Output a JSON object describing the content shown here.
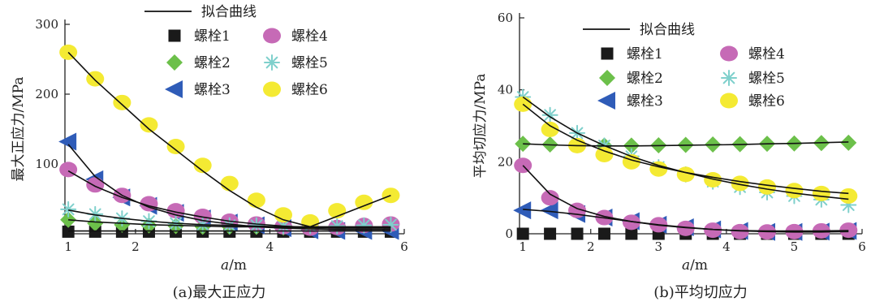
{
  "chart_data": [
    {
      "type": "scatter",
      "caption": "(a)最大正应力",
      "xlabel_var": "a",
      "xlabel_unit": "/m",
      "ylabel": "最大正应力/MPa",
      "xlim": [
        0.95,
        6.0
      ],
      "ylim": [
        0,
        300
      ],
      "xticks": [
        1,
        2,
        3,
        4,
        5,
        6
      ],
      "xtick_labels": [
        "1",
        "2",
        "",
        "4",
        "",
        "6"
      ],
      "yticks": [
        100,
        200,
        300
      ],
      "x": [
        1.0,
        1.4,
        1.8,
        2.2,
        2.6,
        3.0,
        3.4,
        3.8,
        4.2,
        4.6,
        5.0,
        5.4,
        5.8
      ],
      "fit_label": "拟合曲线",
      "series": [
        {
          "name": "螺栓1",
          "marker": "square",
          "color": "#1a1a1a",
          "values": [
            3,
            3,
            3,
            3,
            3,
            3,
            3,
            3,
            3,
            3,
            3,
            3,
            3
          ],
          "fit": [
            4,
            4,
            4,
            4,
            4,
            4,
            4,
            4,
            4,
            4,
            4,
            4,
            4
          ]
        },
        {
          "name": "螺栓2",
          "marker": "diamond",
          "color": "#6cc04a",
          "values": [
            20,
            15,
            13,
            12,
            11,
            10,
            10,
            10,
            9,
            9,
            9,
            10,
            11
          ],
          "fit": [
            20,
            17,
            15,
            13,
            12,
            11,
            10,
            10,
            9,
            9,
            9,
            9,
            9
          ]
        },
        {
          "name": "螺栓3",
          "marker": "triangle-left",
          "color": "#2f5cb8",
          "values": [
            132,
            78,
            52,
            40,
            30,
            22,
            16,
            12,
            8,
            5,
            4,
            4,
            4
          ],
          "fit": [
            128,
            82,
            55,
            38,
            27,
            19,
            14,
            10,
            8,
            7,
            6,
            6,
            6
          ]
        },
        {
          "name": "螺栓4",
          "marker": "circle",
          "color": "#c66ab6",
          "values": [
            92,
            70,
            55,
            43,
            33,
            25,
            18,
            14,
            10,
            8,
            9,
            12,
            14
          ],
          "fit": [
            90,
            68,
            52,
            40,
            31,
            24,
            18,
            14,
            11,
            9,
            8,
            8,
            8
          ]
        },
        {
          "name": "螺栓5",
          "marker": "asterisk",
          "color": "#7fd0cc",
          "values": [
            35,
            28,
            22,
            18,
            15,
            13,
            12,
            12,
            11,
            11,
            11,
            12,
            13
          ],
          "fit": [
            34,
            27,
            22,
            18,
            15,
            13,
            12,
            11,
            10,
            10,
            10,
            10,
            10
          ]
        },
        {
          "name": "螺栓6",
          "marker": "circle",
          "color": "#f4ea33",
          "values": [
            260,
            222,
            188,
            156,
            125,
            98,
            72,
            48,
            27,
            17,
            33,
            45,
            55
          ],
          "fit": [
            260,
            220,
            185,
            150,
            120,
            90,
            62,
            38,
            20,
            10,
            25,
            40,
            55
          ]
        }
      ]
    },
    {
      "type": "scatter",
      "caption": "(b)平均切应力",
      "xlabel_var": "a",
      "xlabel_unit": "/m",
      "ylabel": "平均切应力/MPa",
      "xlim": [
        0.95,
        6.0
      ],
      "ylim": [
        0,
        60
      ],
      "xticks": [
        1,
        2,
        3,
        4,
        5,
        6
      ],
      "xtick_labels": [
        "1",
        "2",
        "3",
        "4",
        "5",
        "6"
      ],
      "yticks": [
        0,
        20,
        40,
        60
      ],
      "x": [
        1.0,
        1.4,
        1.8,
        2.2,
        2.6,
        3.0,
        3.4,
        3.8,
        4.2,
        4.6,
        5.0,
        5.4,
        5.8
      ],
      "fit_label": "拟合曲线",
      "series": [
        {
          "name": "螺栓1",
          "marker": "square",
          "color": "#1a1a1a",
          "values": [
            0,
            0,
            0,
            0,
            0,
            0,
            0,
            0,
            0,
            0,
            0,
            0,
            0
          ],
          "fit": null
        },
        {
          "name": "螺栓2",
          "marker": "diamond",
          "color": "#6cc04a",
          "values": [
            25,
            24.8,
            24.6,
            24.5,
            24.5,
            24.6,
            24.7,
            24.8,
            24.9,
            25.0,
            25.1,
            25.2,
            25.3
          ],
          "fit": [
            25,
            24.7,
            24.5,
            24.4,
            24.4,
            24.5,
            24.6,
            24.7,
            24.8,
            25.0,
            25.1,
            25.3,
            25.5
          ]
        },
        {
          "name": "螺栓3",
          "marker": "triangle-left",
          "color": "#2f5cb8",
          "values": [
            6.5,
            6.5,
            5.5,
            4.5,
            3.5,
            2.5,
            1.8,
            1.2,
            0.8,
            0.5,
            0.5,
            0.6,
            0.8
          ],
          "fit": [
            6.8,
            6.2,
            5.4,
            4.4,
            3.4,
            2.5,
            1.8,
            1.2,
            0.8,
            0.6,
            0.5,
            0.5,
            0.6
          ]
        },
        {
          "name": "螺栓4",
          "marker": "circle",
          "color": "#c66ab6",
          "values": [
            19,
            10,
            6.5,
            4.5,
            3.2,
            2.5,
            1.5,
            1.0,
            0.6,
            0.5,
            0.6,
            0.8,
            1.0
          ],
          "fit": [
            19,
            11,
            7,
            4.8,
            3.4,
            2.4,
            1.7,
            1.2,
            0.9,
            0.8,
            0.8,
            0.8,
            0.9
          ]
        },
        {
          "name": "螺栓5",
          "marker": "asterisk",
          "color": "#7fd0cc",
          "values": [
            38,
            33,
            28,
            24.5,
            21.5,
            18.5,
            16.5,
            14.5,
            13,
            11.5,
            10.5,
            9.5,
            8
          ],
          "fit": [
            38,
            32.5,
            28,
            24.5,
            21.5,
            19,
            17,
            15.2,
            13.7,
            12.4,
            11.3,
            10.4,
            9.6
          ]
        },
        {
          "name": "螺栓6",
          "marker": "circle",
          "color": "#f4ea33",
          "values": [
            36,
            29,
            24.5,
            22,
            20,
            18,
            16.5,
            15,
            14,
            13,
            12,
            11.2,
            10.5
          ],
          "fit": [
            36,
            30,
            26,
            23,
            20.5,
            18.6,
            17,
            15.7,
            14.5,
            13.5,
            12.6,
            11.8,
            11.2
          ]
        }
      ]
    }
  ]
}
